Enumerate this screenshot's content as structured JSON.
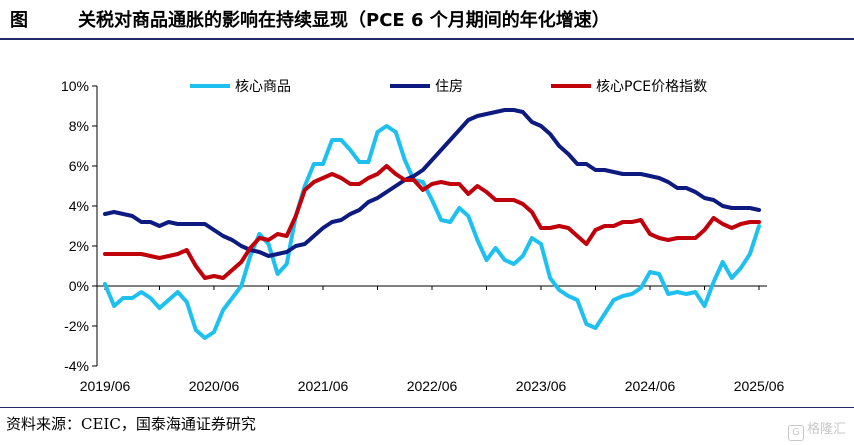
{
  "figure": {
    "label": "图",
    "title": "关税对商品通胀的影响在持续显现（PCE 6 个月期间的年化增速）"
  },
  "source": "资料来源：CEIC，国泰海通证券研究",
  "watermark": "格隆汇",
  "chart_data": {
    "type": "line",
    "ylim": [
      -4,
      10
    ],
    "yticks": [
      "10%",
      "8%",
      "6%",
      "4%",
      "2%",
      "0%",
      "-2%",
      "-4%"
    ],
    "ytick_values": [
      10,
      8,
      6,
      4,
      2,
      0,
      -2,
      -4
    ],
    "xticks": [
      "2019/06",
      "2020/06",
      "2021/06",
      "2022/06",
      "2023/06",
      "2024/06",
      "2025/06"
    ],
    "grid": false,
    "legend_position": "top",
    "x_start": "2019/06",
    "series": [
      {
        "name": "核心商品",
        "color": "#1ec0f0",
        "values": [
          0.1,
          -1.0,
          -0.6,
          -0.6,
          -0.3,
          -0.6,
          -1.1,
          -0.7,
          -0.3,
          -0.8,
          -2.2,
          -2.6,
          -2.3,
          -1.2,
          -0.6,
          0.0,
          1.5,
          2.6,
          2.1,
          0.6,
          1.1,
          3.5,
          5.0,
          6.1,
          6.1,
          7.3,
          7.3,
          6.8,
          6.2,
          6.2,
          7.7,
          8.0,
          7.7,
          6.3,
          5.3,
          5.2,
          4.3,
          3.3,
          3.2,
          3.9,
          3.5,
          2.3,
          1.3,
          1.9,
          1.3,
          1.1,
          1.5,
          2.4,
          2.1,
          0.4,
          -0.2,
          -0.5,
          -0.7,
          -1.9,
          -2.1,
          -1.4,
          -0.7,
          -0.5,
          -0.4,
          -0.1,
          0.7,
          0.6,
          -0.4,
          -0.3,
          -0.4,
          -0.3,
          -1.0,
          0.2,
          1.2,
          0.4,
          0.9,
          1.6,
          3.0
        ]
      },
      {
        "name": "住房",
        "color": "#0d1a80",
        "values": [
          3.6,
          3.7,
          3.6,
          3.5,
          3.2,
          3.2,
          3.0,
          3.2,
          3.1,
          3.1,
          3.1,
          3.1,
          2.8,
          2.5,
          2.3,
          2.0,
          1.8,
          1.7,
          1.5,
          1.6,
          1.7,
          2.0,
          2.1,
          2.5,
          2.9,
          3.2,
          3.3,
          3.6,
          3.8,
          4.2,
          4.4,
          4.7,
          5.0,
          5.3,
          5.5,
          5.8,
          6.3,
          6.8,
          7.3,
          7.8,
          8.3,
          8.5,
          8.6,
          8.7,
          8.8,
          8.8,
          8.7,
          8.2,
          8.0,
          7.6,
          7.0,
          6.6,
          6.1,
          6.1,
          5.8,
          5.8,
          5.7,
          5.6,
          5.6,
          5.6,
          5.5,
          5.4,
          5.2,
          4.9,
          4.9,
          4.7,
          4.4,
          4.3,
          4.0,
          3.9,
          3.9,
          3.9,
          3.8
        ]
      },
      {
        "name": "核心PCE价格指数",
        "color": "#c0000a",
        "values": [
          1.6,
          1.6,
          1.6,
          1.6,
          1.6,
          1.5,
          1.4,
          1.5,
          1.6,
          1.8,
          1.0,
          0.4,
          0.5,
          0.4,
          0.8,
          1.2,
          1.9,
          2.4,
          2.3,
          2.6,
          2.5,
          3.5,
          4.8,
          5.2,
          5.4,
          5.6,
          5.4,
          5.1,
          5.1,
          5.4,
          5.6,
          6.0,
          5.6,
          5.3,
          5.3,
          4.8,
          5.1,
          5.2,
          5.1,
          5.1,
          4.6,
          5.0,
          4.7,
          4.3,
          4.3,
          4.3,
          4.1,
          3.7,
          2.9,
          2.9,
          3.0,
          2.9,
          2.5,
          2.1,
          2.8,
          3.0,
          3.0,
          3.2,
          3.2,
          3.3,
          2.6,
          2.4,
          2.3,
          2.4,
          2.4,
          2.4,
          2.8,
          3.4,
          3.1,
          2.9,
          3.1,
          3.2,
          3.2
        ]
      }
    ]
  }
}
